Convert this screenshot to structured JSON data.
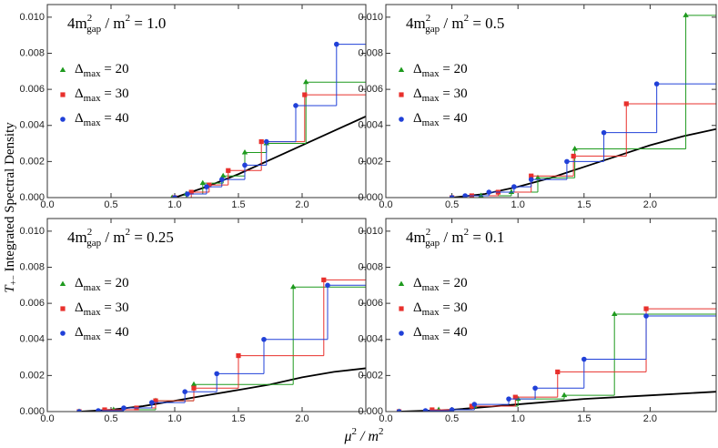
{
  "xlabel": [
    "μ",
    "2",
    " / m",
    "2"
  ],
  "ylabel": [
    "T",
    "+−",
    " Integrated Spectral Density"
  ],
  "chart_data": [
    {
      "type": "step",
      "title": [
        "4m",
        "2",
        "gap",
        " / m",
        "2",
        " = 1.0"
      ],
      "xlim": [
        0,
        2.5
      ],
      "ylim": [
        0,
        0.0107
      ],
      "xticks": [
        {
          "value": 0,
          "label": "0.0"
        },
        {
          "value": 0.5,
          "label": "0.5"
        },
        {
          "value": 1,
          "label": "1.0"
        },
        {
          "value": 1.5,
          "label": "1.5"
        },
        {
          "value": 2,
          "label": "2.0"
        }
      ],
      "yticks": [
        {
          "value": 0,
          "label": "0.000"
        },
        {
          "value": 0.002,
          "label": "0.002"
        },
        {
          "value": 0.004,
          "label": "0.004"
        },
        {
          "value": 0.006,
          "label": "0.006"
        },
        {
          "value": 0.008,
          "label": "0.008"
        },
        {
          "value": 0.01,
          "label": "0.010"
        }
      ],
      "series": [
        {
          "name": [
            "Δ",
            "max",
            " = 20"
          ],
          "color": "#1e9a1e",
          "marker": "triangle",
          "x": [
            0.98,
            1.09,
            1.22,
            1.38,
            1.55,
            1.72,
            2.03
          ],
          "values": [
            0,
            0.0002,
            0.0008,
            0.0012,
            0.0025,
            0.003,
            0.0064
          ]
        },
        {
          "name": [
            "Δ",
            "max",
            " = 30"
          ],
          "color": "#e8302c",
          "marker": "square",
          "x": [
            1.0,
            1.13,
            1.27,
            1.42,
            1.68,
            2.02
          ],
          "values": [
            0,
            0.0003,
            0.0007,
            0.0015,
            0.0031,
            0.0057
          ]
        },
        {
          "name": [
            "Δ",
            "max",
            " = 40"
          ],
          "color": "#2040d8",
          "marker": "circle",
          "x": [
            1.0,
            1.1,
            1.25,
            1.37,
            1.55,
            1.72,
            1.95,
            2.27
          ],
          "values": [
            0,
            0.0002,
            0.0006,
            0.001,
            0.0018,
            0.0031,
            0.0051,
            0.0085
          ]
        }
      ],
      "curve": {
        "color": "#000000",
        "x": [
          1.0,
          1.25,
          1.5,
          1.75,
          2.0,
          2.25,
          2.5
        ],
        "values": [
          0,
          0.0006,
          0.0013,
          0.0021,
          0.0029,
          0.0037,
          0.0045
        ]
      }
    },
    {
      "type": "step",
      "title": [
        "4m",
        "2",
        "gap",
        " / m",
        "2",
        " = 0.5"
      ],
      "xlim": [
        0,
        2.5
      ],
      "ylim": [
        0,
        0.0107
      ],
      "xticks": [
        {
          "value": 0,
          "label": "0.0"
        },
        {
          "value": 0.5,
          "label": "0.5"
        },
        {
          "value": 1,
          "label": "1.0"
        },
        {
          "value": 1.5,
          "label": "1.5"
        },
        {
          "value": 2,
          "label": "2.0"
        }
      ],
      "yticks": [
        {
          "value": 0,
          "label": "0.000"
        },
        {
          "value": 0.002,
          "label": "0.002"
        },
        {
          "value": 0.004,
          "label": "0.004"
        },
        {
          "value": 0.006,
          "label": "0.006"
        },
        {
          "value": 0.008,
          "label": "0.008"
        },
        {
          "value": 0.01,
          "label": "0.010"
        }
      ],
      "series": [
        {
          "name": [
            "Δ",
            "max",
            " = 20"
          ],
          "color": "#1e9a1e",
          "marker": "triangle",
          "x": [
            0.5,
            0.72,
            0.95,
            1.15,
            1.43,
            2.27
          ],
          "values": [
            0,
            0.0001,
            0.0003,
            0.0011,
            0.0027,
            0.0101
          ]
        },
        {
          "name": [
            "Δ",
            "max",
            " = 30"
          ],
          "color": "#e8302c",
          "marker": "square",
          "x": [
            0.5,
            0.65,
            0.85,
            1.1,
            1.42,
            1.82
          ],
          "values": [
            0,
            0.0001,
            0.0003,
            0.0012,
            0.0023,
            0.0052
          ]
        },
        {
          "name": [
            "Δ",
            "max",
            " = 40"
          ],
          "color": "#2040d8",
          "marker": "circle",
          "x": [
            0.5,
            0.6,
            0.78,
            0.97,
            1.1,
            1.37,
            1.65,
            2.05
          ],
          "values": [
            0,
            0.0001,
            0.0003,
            0.0006,
            0.001,
            0.002,
            0.0036,
            0.0063
          ]
        }
      ],
      "curve": {
        "color": "#000000",
        "x": [
          0.5,
          0.75,
          1.0,
          1.25,
          1.5,
          1.75,
          2.0,
          2.25,
          2.5
        ],
        "values": [
          0,
          0.0002,
          0.0006,
          0.0011,
          0.0017,
          0.0023,
          0.0029,
          0.0034,
          0.0038
        ]
      }
    },
    {
      "type": "step",
      "title": [
        "4m",
        "2",
        "gap",
        " / m",
        "2",
        " = 0.25"
      ],
      "xlim": [
        0,
        2.5
      ],
      "ylim": [
        0,
        0.0107
      ],
      "xticks": [
        {
          "value": 0,
          "label": "0.0"
        },
        {
          "value": 0.5,
          "label": "0.5"
        },
        {
          "value": 1,
          "label": "1.0"
        },
        {
          "value": 1.5,
          "label": "1.5"
        },
        {
          "value": 2,
          "label": "2.0"
        }
      ],
      "yticks": [
        {
          "value": 0,
          "label": "0.000"
        },
        {
          "value": 0.002,
          "label": "0.002"
        },
        {
          "value": 0.004,
          "label": "0.004"
        },
        {
          "value": 0.006,
          "label": "0.006"
        },
        {
          "value": 0.008,
          "label": "0.008"
        },
        {
          "value": 0.01,
          "label": "0.010"
        }
      ],
      "series": [
        {
          "name": [
            "Δ",
            "max",
            " = 20"
          ],
          "color": "#1e9a1e",
          "marker": "triangle",
          "x": [
            0.25,
            0.52,
            0.85,
            1.15,
            1.93
          ],
          "values": [
            0,
            0.0001,
            0.0006,
            0.0015,
            0.0069
          ]
        },
        {
          "name": [
            "Δ",
            "max",
            " = 30"
          ],
          "color": "#e8302c",
          "marker": "square",
          "x": [
            0.25,
            0.45,
            0.7,
            0.85,
            1.15,
            1.5,
            2.17
          ],
          "values": [
            0,
            0.0001,
            0.0002,
            0.0006,
            0.0013,
            0.0031,
            0.0073
          ]
        },
        {
          "name": [
            "Δ",
            "max",
            " = 40"
          ],
          "color": "#2040d8",
          "marker": "circle",
          "x": [
            0.25,
            0.4,
            0.6,
            0.82,
            1.08,
            1.33,
            1.7,
            2.2
          ],
          "values": [
            0,
            5e-05,
            0.0002,
            0.0005,
            0.0011,
            0.0021,
            0.004,
            0.007
          ]
        }
      ],
      "curve": {
        "color": "#000000",
        "x": [
          0.25,
          0.5,
          0.75,
          1.0,
          1.25,
          1.5,
          1.75,
          2.0,
          2.25,
          2.5
        ],
        "values": [
          0,
          0.0001,
          0.0003,
          0.0006,
          0.0009,
          0.0012,
          0.0015,
          0.0019,
          0.0022,
          0.0024
        ]
      }
    },
    {
      "type": "step",
      "title": [
        "4m",
        "2",
        "gap",
        " / m",
        "2",
        " = 0.1"
      ],
      "xlim": [
        0,
        2.5
      ],
      "ylim": [
        0,
        0.0107
      ],
      "xticks": [
        {
          "value": 0,
          "label": "0.0"
        },
        {
          "value": 0.5,
          "label": "0.5"
        },
        {
          "value": 1,
          "label": "1.0"
        },
        {
          "value": 1.5,
          "label": "1.5"
        },
        {
          "value": 2,
          "label": "2.0"
        }
      ],
      "yticks": [
        {
          "value": 0,
          "label": "0.000"
        },
        {
          "value": 0.002,
          "label": "0.002"
        },
        {
          "value": 0.004,
          "label": "0.004"
        },
        {
          "value": 0.006,
          "label": "0.006"
        },
        {
          "value": 0.008,
          "label": "0.008"
        },
        {
          "value": 0.01,
          "label": "0.010"
        }
      ],
      "series": [
        {
          "name": [
            "Δ",
            "max",
            " = 20"
          ],
          "color": "#1e9a1e",
          "marker": "triangle",
          "x": [
            0.1,
            0.4,
            0.67,
            1.0,
            1.35,
            1.73
          ],
          "values": [
            0,
            0.0001,
            0.0003,
            0.0007,
            0.0009,
            0.0054
          ]
        },
        {
          "name": [
            "Δ",
            "max",
            " = 30"
          ],
          "color": "#e8302c",
          "marker": "square",
          "x": [
            0.1,
            0.35,
            0.65,
            0.98,
            1.3,
            1.97
          ],
          "values": [
            0,
            0.0001,
            0.0003,
            0.0008,
            0.0022,
            0.0057
          ]
        },
        {
          "name": [
            "Δ",
            "max",
            " = 40"
          ],
          "color": "#2040d8",
          "marker": "circle",
          "x": [
            0.1,
            0.3,
            0.5,
            0.67,
            0.93,
            1.13,
            1.5,
            1.97
          ],
          "values": [
            0,
            5e-05,
            0.0001,
            0.0004,
            0.0007,
            0.0013,
            0.0029,
            0.0053
          ]
        }
      ],
      "curve": {
        "color": "#000000",
        "x": [
          0.1,
          0.5,
          1.0,
          1.5,
          2.0,
          2.5
        ],
        "values": [
          0,
          0.0001,
          0.0004,
          0.0007,
          0.0009,
          0.0011
        ]
      }
    }
  ]
}
